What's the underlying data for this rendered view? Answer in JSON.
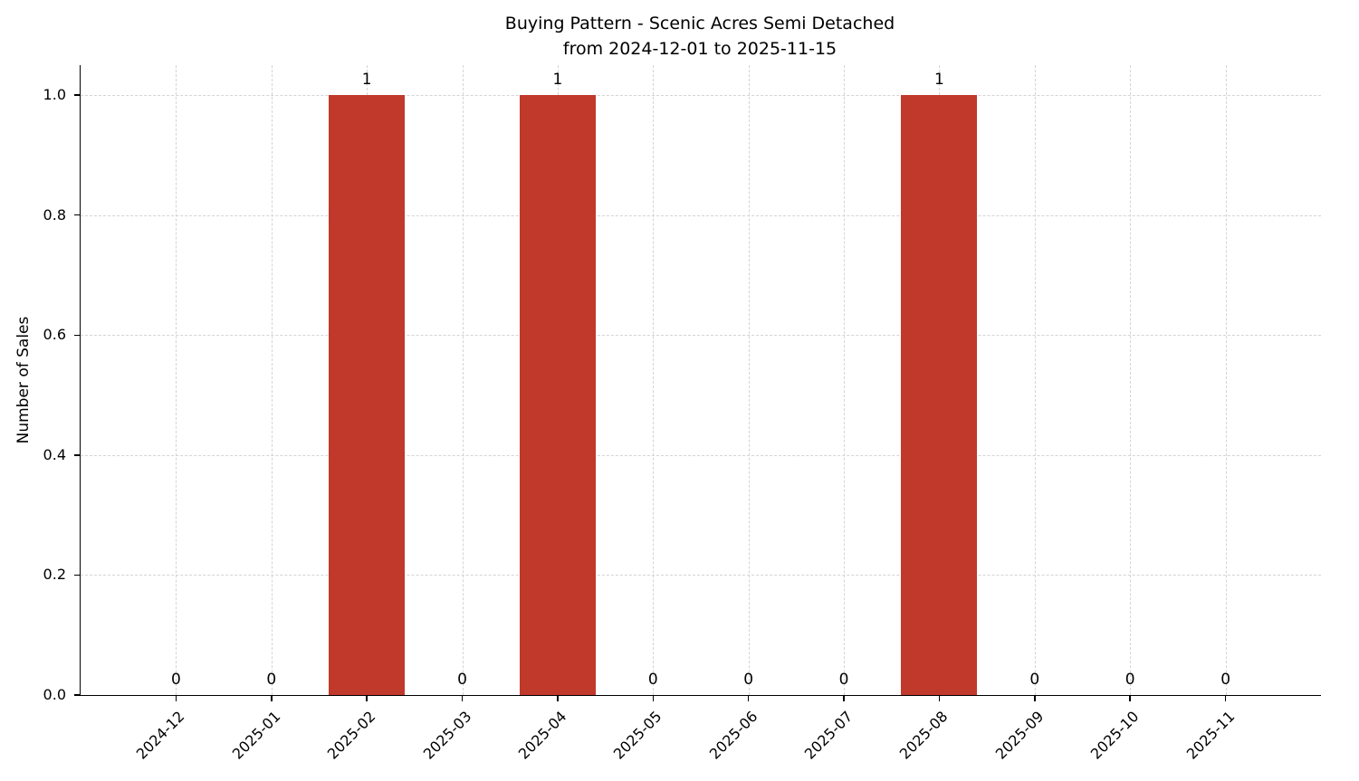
{
  "chart_data": {
    "type": "bar",
    "title": "Buying Pattern - Scenic Acres Semi Detached",
    "subtitle": "from 2024-12-01 to 2025-11-15",
    "ylabel": "Number of Sales",
    "xlabel": "",
    "categories": [
      "2024-12",
      "2025-01",
      "2025-02",
      "2025-03",
      "2025-04",
      "2025-05",
      "2025-06",
      "2025-07",
      "2025-08",
      "2025-09",
      "2025-10",
      "2025-11"
    ],
    "values": [
      0,
      0,
      1,
      0,
      1,
      0,
      0,
      0,
      1,
      0,
      0,
      0
    ],
    "value_labels": [
      "0",
      "0",
      "1",
      "0",
      "1",
      "0",
      "0",
      "0",
      "1",
      "0",
      "0",
      "0"
    ],
    "yticks": [
      0.0,
      0.2,
      0.4,
      0.6,
      0.8,
      1.0
    ],
    "ylim": [
      0,
      1.05
    ],
    "bar_color": "#c0392b",
    "grid": "dashed",
    "legend": "none",
    "tick_rotation_deg": 45
  }
}
